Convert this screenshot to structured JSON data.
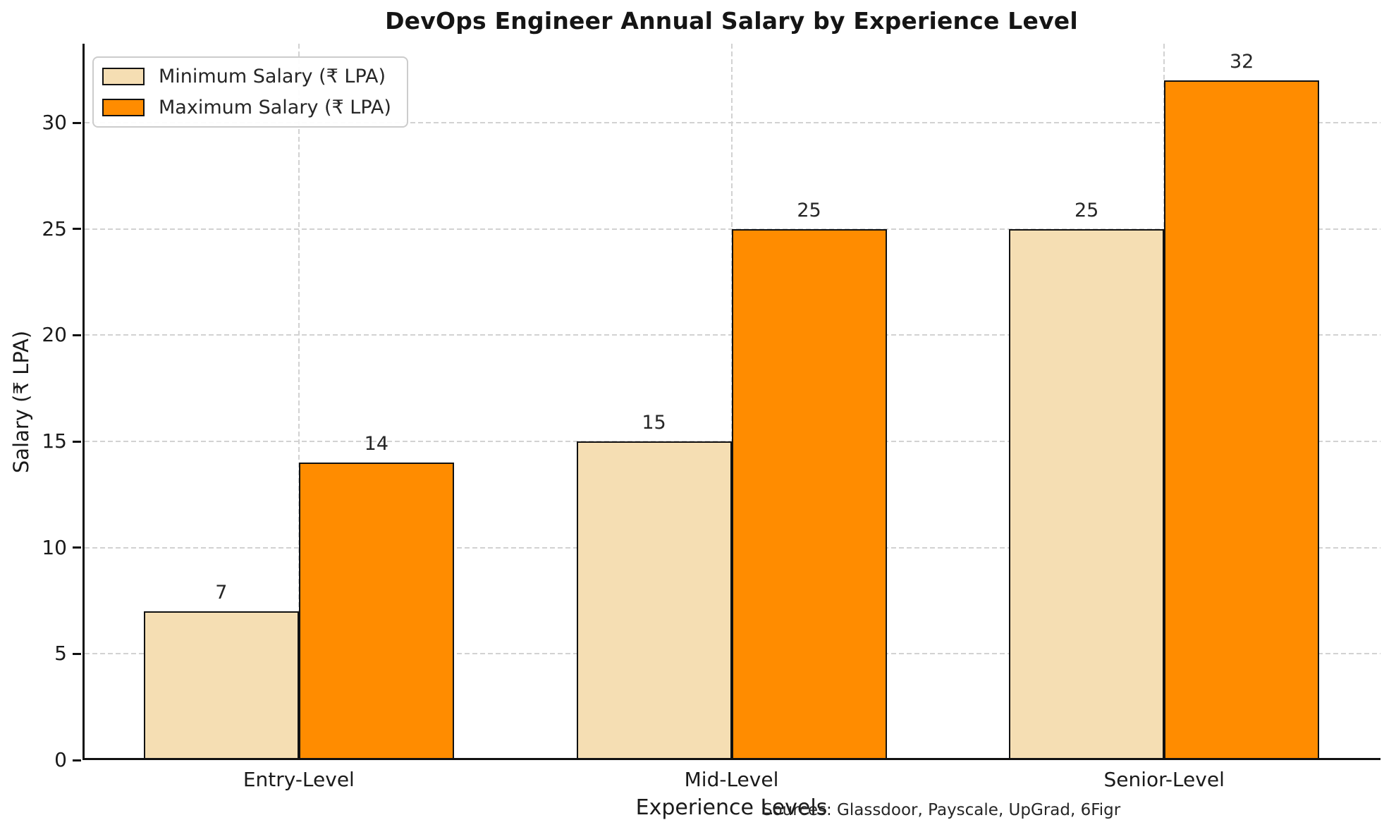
{
  "chart_data": {
    "type": "bar",
    "title": "DevOps Engineer Annual Salary by Experience Level",
    "categories": [
      "Entry-Level",
      "Mid-Level",
      "Senior-Level"
    ],
    "series": [
      {
        "name": "Minimum Salary (₹ LPA)",
        "values": [
          7,
          15,
          25
        ],
        "color": "#F5DEB3"
      },
      {
        "name": "Maximum Salary (₹ LPA)",
        "values": [
          14,
          25,
          32
        ],
        "color": "#FF8C00"
      }
    ],
    "xlabel": "Experience Levels",
    "ylabel": "Salary (₹ LPA)",
    "ylim": [
      0,
      33.72
    ],
    "yticks": [
      0,
      5,
      10,
      15,
      20,
      25,
      30
    ],
    "grid": true,
    "grid_style": "dashed",
    "grid_color": "#d2d2d2",
    "bar_edge_color": "#111111",
    "legend_position": "upper left",
    "annotation": "Sources: Glassdoor, Payscale, UpGrad, 6Figr"
  }
}
